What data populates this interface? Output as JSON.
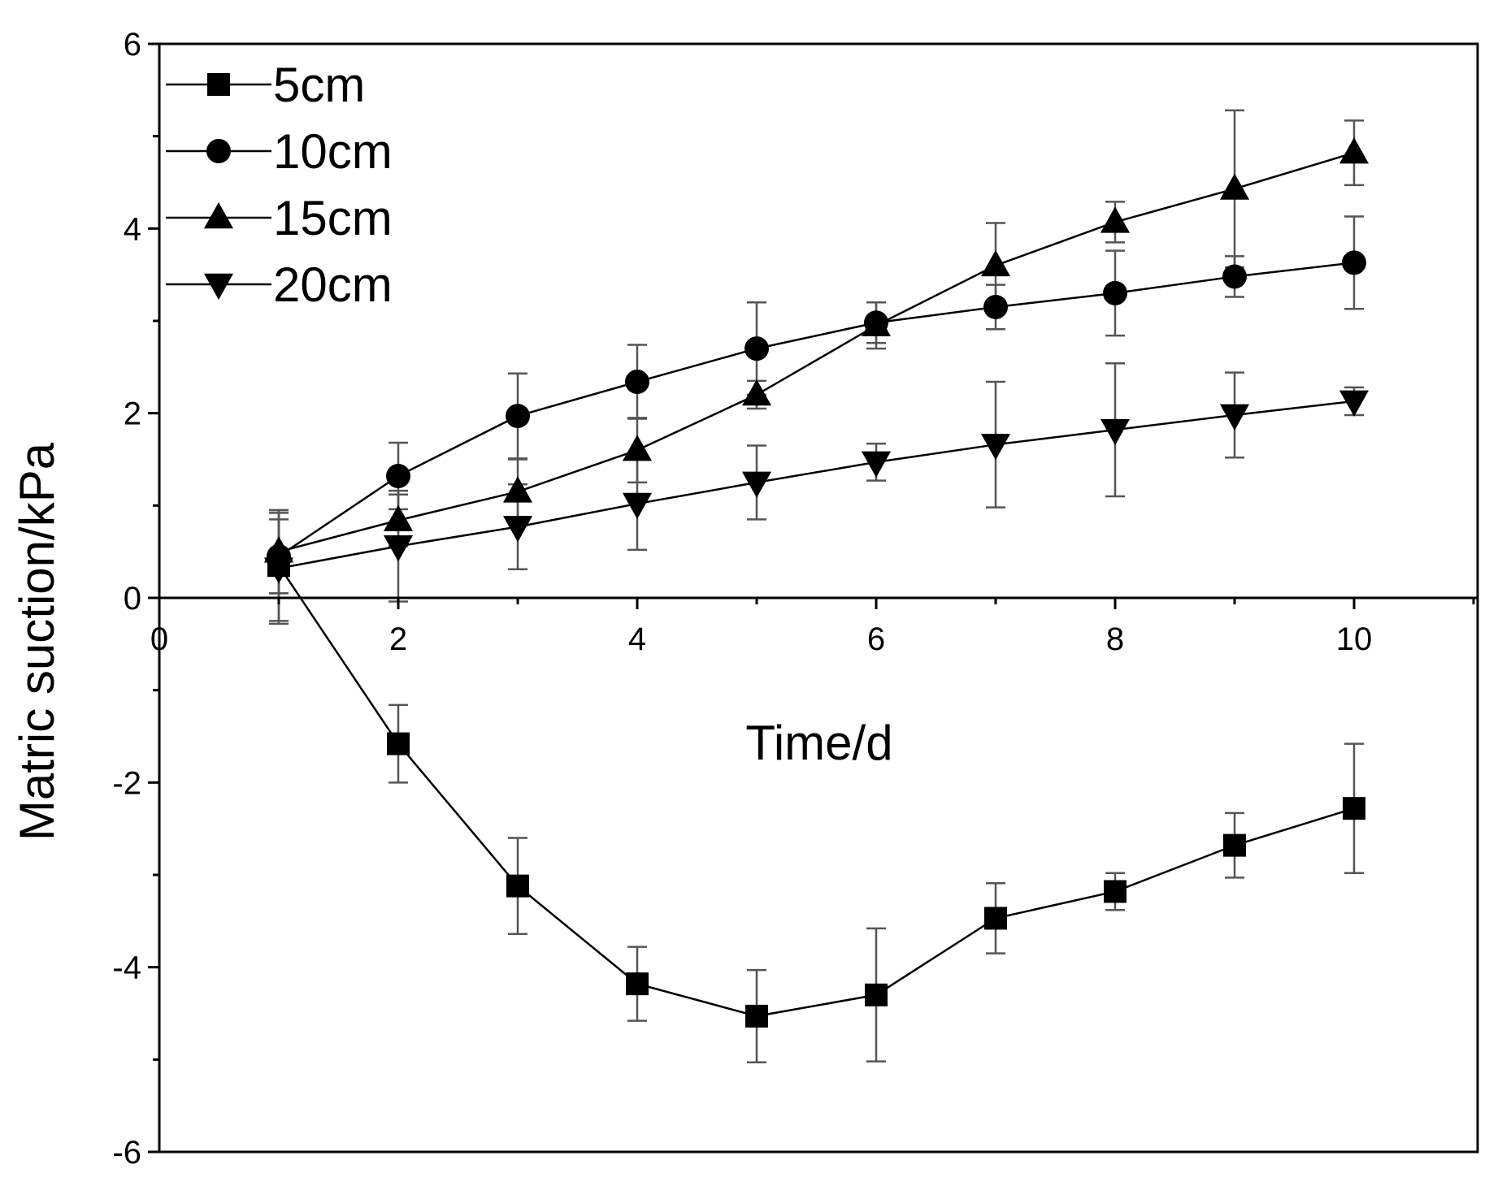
{
  "chart_data": {
    "type": "line",
    "xlabel": "Time/d",
    "ylabel": "Matric suction/kPa",
    "xlim": [
      0,
      11
    ],
    "ylim": [
      -6,
      6
    ],
    "xticks": [
      0,
      2,
      4,
      6,
      8,
      10
    ],
    "yticks": [
      6,
      4,
      2,
      0,
      -2,
      -4,
      -6
    ],
    "xtick_labels": [
      "0",
      "2",
      "4",
      "6",
      "8",
      "10"
    ],
    "ytick_labels": [
      "6",
      "4",
      "2",
      "0",
      "-2",
      "-4",
      "-6"
    ],
    "grid": false,
    "legend_position": "top-left",
    "x": [
      1,
      2,
      3,
      4,
      5,
      6,
      7,
      8,
      9,
      10
    ],
    "series": [
      {
        "name": "5cm",
        "marker": "square",
        "values": [
          0.35,
          -1.58,
          -3.12,
          -4.18,
          -4.53,
          -4.3,
          -3.47,
          -3.18,
          -2.68,
          -2.28
        ],
        "errors": [
          0.6,
          0.42,
          0.52,
          0.4,
          0.5,
          0.72,
          0.38,
          0.2,
          0.35,
          0.7
        ]
      },
      {
        "name": "10cm",
        "marker": "circle",
        "values": [
          0.45,
          1.32,
          1.97,
          2.34,
          2.7,
          2.98,
          3.15,
          3.3,
          3.48,
          3.63
        ],
        "errors": [
          0.4,
          0.36,
          0.46,
          0.4,
          0.5,
          0.22,
          0.24,
          0.46,
          0.22,
          0.5
        ]
      },
      {
        "name": "15cm",
        "marker": "triangle-up",
        "values": [
          0.5,
          0.84,
          1.15,
          1.6,
          2.2,
          2.95,
          3.6,
          4.07,
          4.43,
          4.82
        ],
        "errors": [
          0.45,
          0.28,
          0.35,
          0.35,
          0.15,
          0.25,
          0.46,
          0.22,
          0.85,
          0.35
        ]
      },
      {
        "name": "20cm",
        "marker": "triangle-down",
        "values": [
          0.32,
          0.56,
          0.77,
          1.02,
          1.25,
          1.47,
          1.66,
          1.82,
          1.98,
          2.13
        ],
        "errors": [
          0.6,
          0.6,
          0.46,
          0.5,
          0.4,
          0.2,
          0.68,
          0.72,
          0.46,
          0.15
        ]
      }
    ]
  }
}
